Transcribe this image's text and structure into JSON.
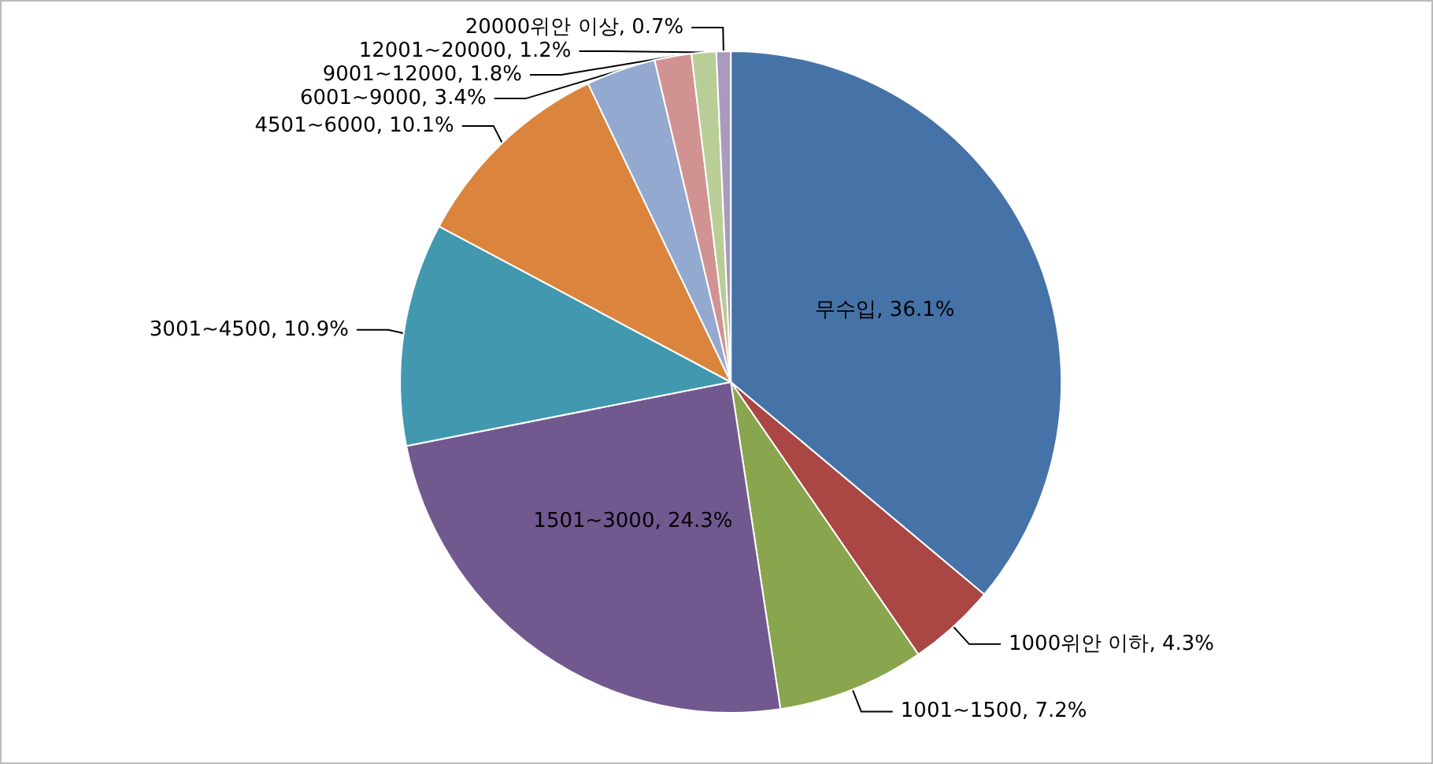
{
  "chart_data": {
    "type": "pie",
    "categories": [
      "무수입",
      "1000위안 이하",
      "1001~1500",
      "1501~3000",
      "3001~4500",
      "4501~6000",
      "6001~9000",
      "9001~12000",
      "12001~20000",
      "20000위안 이상"
    ],
    "values": [
      36.1,
      4.3,
      7.2,
      24.3,
      10.9,
      10.1,
      3.4,
      1.8,
      1.2,
      0.7
    ],
    "value_labels": [
      "36.1%",
      "4.3%",
      "7.2%",
      "24.3%",
      "10.9%",
      "10.1%",
      "3.4%",
      "1.8%",
      "1.2%",
      "0.7%"
    ],
    "colors": [
      "#4572a7",
      "#aa4643",
      "#89a54e",
      "#71588f",
      "#4198af",
      "#db843d",
      "#93a9cf",
      "#d19392",
      "#b9cd96",
      "#a99bbd"
    ],
    "legend": false
  }
}
